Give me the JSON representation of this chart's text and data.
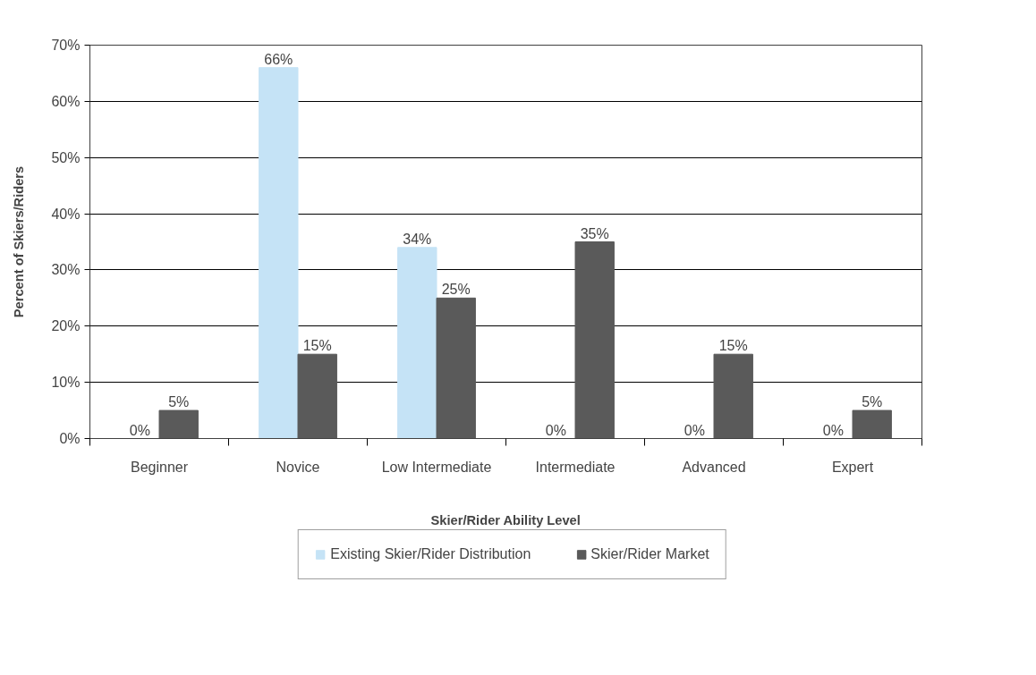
{
  "chart_data": {
    "type": "bar",
    "xlabel": "Skier/Rider Ability Level",
    "ylabel": "Percent of Skiers/Riders",
    "categories": [
      "Beginner",
      "Novice",
      "Low Intermediate",
      "Intermediate",
      "Advanced",
      "Expert"
    ],
    "series": [
      {
        "name": "Existing Skier/Rider Distribution",
        "color": "#c5e3f6",
        "values": [
          0,
          66,
          34,
          0,
          0,
          0
        ],
        "value_labels": [
          "0%",
          "66%",
          "34%",
          "0%",
          "0%",
          "0%"
        ]
      },
      {
        "name": "Skier/Rider Market",
        "color": "#5a5a5a",
        "values": [
          5,
          15,
          25,
          35,
          15,
          5
        ],
        "value_labels": [
          "5%",
          "15%",
          "25%",
          "35%",
          "15%",
          "5%"
        ]
      }
    ],
    "ylim": [
      0,
      70
    ],
    "yticks": [
      {
        "value": 0,
        "label": "0%"
      },
      {
        "value": 10,
        "label": "10%"
      },
      {
        "value": 20,
        "label": "20%"
      },
      {
        "value": 30,
        "label": "30%"
      },
      {
        "value": 40,
        "label": "40%"
      },
      {
        "value": 50,
        "label": "50%"
      },
      {
        "value": 60,
        "label": "60%"
      },
      {
        "value": 70,
        "label": "70%"
      }
    ],
    "grid": "y",
    "legend": "bottom"
  }
}
